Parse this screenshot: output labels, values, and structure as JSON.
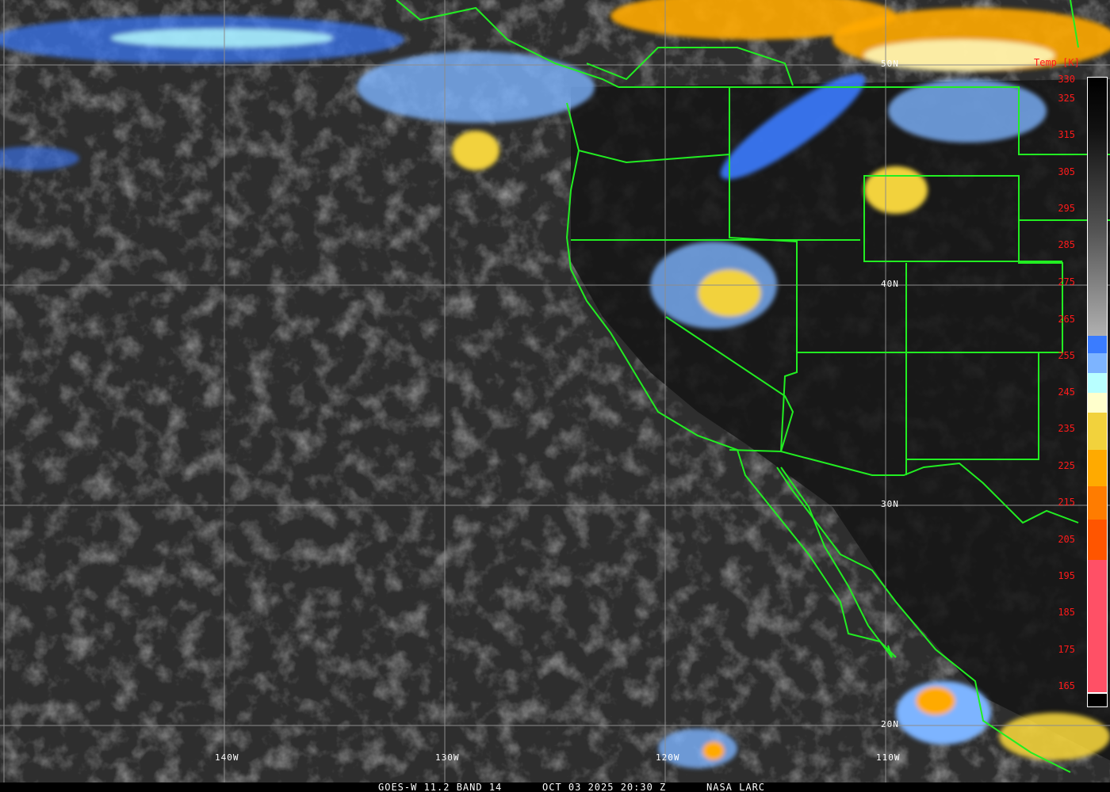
{
  "footer": {
    "satellite": "GOES-W 11.2 BAND 14",
    "datetime": "OCT 03 2025 20:30 Z",
    "credit": "NASA LARC"
  },
  "colorbar": {
    "title": "Temp [K]",
    "ticks": [
      "330",
      "325",
      "315",
      "305",
      "295",
      "285",
      "275",
      "265",
      "255",
      "245",
      "235",
      "225",
      "215",
      "205",
      "195",
      "185",
      "175",
      "165"
    ],
    "colors": {
      "warm_gradient_top": "#000000",
      "warm_gradient_bottom": "#b0b0b0",
      "blue": "#3a7cff",
      "light_blue": "#7db4ff",
      "cyan": "#b8ffff",
      "pale_yellow": "#ffffcc",
      "yellow": "#f2d23c",
      "orange": "#ffaa00",
      "dark_orange": "#ff7c00",
      "red_orange": "#ff5500",
      "pink": "#ff5066"
    }
  },
  "grid": {
    "longitudes": [
      "140W",
      "130W",
      "120W",
      "110W"
    ],
    "latitudes": [
      "50N",
      "40N",
      "30N",
      "20N"
    ]
  },
  "colors": {
    "borders": "#22ee22",
    "gridlines": "#8c8c8c"
  }
}
